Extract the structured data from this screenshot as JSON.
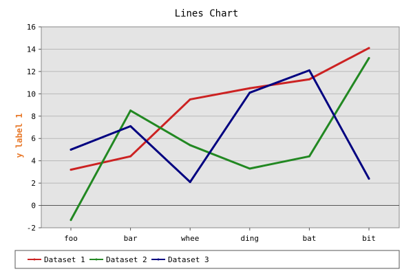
{
  "chart_data": {
    "type": "line",
    "title": "Lines Chart",
    "ylabel": "y label 1",
    "xlabel": "",
    "categories": [
      "foo",
      "bar",
      "whee",
      "ding",
      "bat",
      "bit"
    ],
    "ylim": [
      -2,
      16
    ],
    "yticks": [
      -2,
      0,
      2,
      4,
      6,
      8,
      10,
      12,
      14,
      16
    ],
    "grid": true,
    "legend_position": "bottom",
    "series": [
      {
        "name": "Dataset 1",
        "color": "#cc2222",
        "values": [
          3.2,
          4.4,
          9.5,
          10.5,
          11.3,
          14.1
        ]
      },
      {
        "name": "Dataset 2",
        "color": "#228822",
        "values": [
          -1.3,
          8.5,
          5.4,
          3.3,
          4.4,
          13.2
        ]
      },
      {
        "name": "Dataset 3",
        "color": "#000080",
        "values": [
          5.0,
          7.1,
          2.1,
          10.1,
          12.1,
          2.4
        ]
      }
    ],
    "colors": {
      "plot_background": "#e4e4e4",
      "gridline": "#b8b8b8",
      "title": "#000000",
      "ylabel": "#e87a2c",
      "axis": "#333333"
    }
  }
}
